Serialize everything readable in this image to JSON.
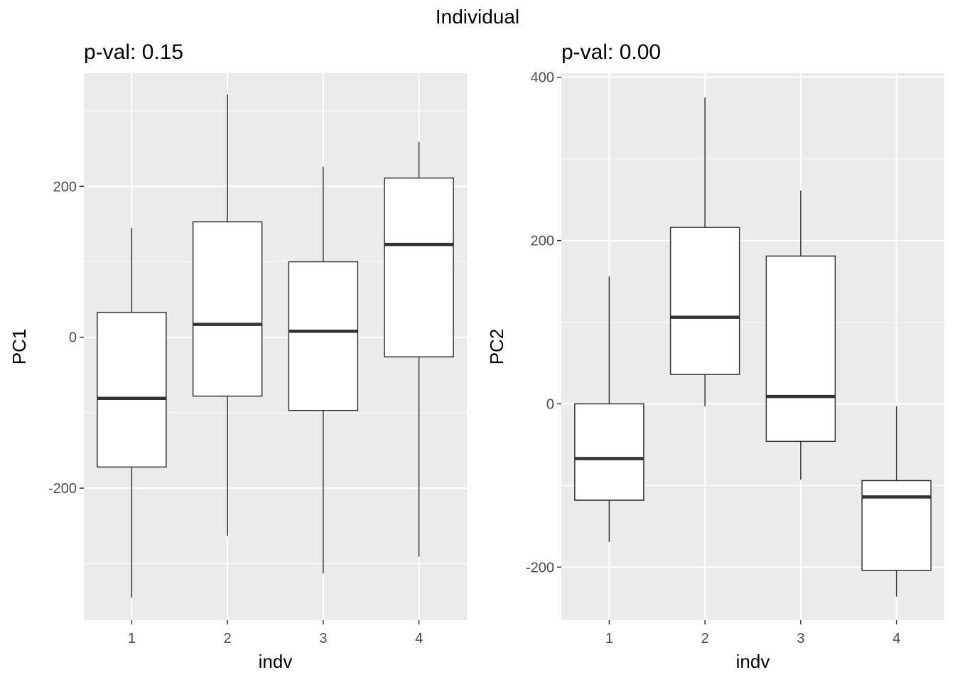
{
  "figure_title": "Individual",
  "chart_data": [
    {
      "type": "boxplot",
      "title": "p-val: 0.15",
      "xlabel": "indv",
      "ylabel": "PC1",
      "categories": [
        "1",
        "2",
        "3",
        "4"
      ],
      "ylim": [
        -375,
        350
      ],
      "yticks": [
        -200,
        0,
        200
      ],
      "boxes": [
        {
          "category": "1",
          "lower_whisker": -345,
          "q1": -172,
          "median": -81,
          "q3": 33,
          "upper_whisker": 145
        },
        {
          "category": "2",
          "lower_whisker": -263,
          "q1": -78,
          "median": 17,
          "q3": 153,
          "upper_whisker": 322
        },
        {
          "category": "3",
          "lower_whisker": -313,
          "q1": -97,
          "median": 8,
          "q3": 100,
          "upper_whisker": 226
        },
        {
          "category": "4",
          "lower_whisker": -291,
          "q1": -26,
          "median": 123,
          "q3": 211,
          "upper_whisker": 259
        }
      ]
    },
    {
      "type": "boxplot",
      "title": "p-val: 0.00",
      "xlabel": "indv",
      "ylabel": "PC2",
      "categories": [
        "1",
        "2",
        "3",
        "4"
      ],
      "ylim": [
        -265,
        405
      ],
      "yticks": [
        -200,
        0,
        200,
        400
      ],
      "boxes": [
        {
          "category": "1",
          "lower_whisker": -169,
          "q1": -118,
          "median": -67,
          "q3": 0,
          "upper_whisker": 156
        },
        {
          "category": "2",
          "lower_whisker": -3,
          "q1": 36,
          "median": 106,
          "q3": 216,
          "upper_whisker": 375
        },
        {
          "category": "3",
          "lower_whisker": -93,
          "q1": -46,
          "median": 9,
          "q3": 181,
          "upper_whisker": 261
        },
        {
          "category": "4",
          "lower_whisker": -236,
          "q1": -204,
          "median": -114,
          "q3": -94,
          "upper_whisker": -3
        }
      ]
    }
  ]
}
